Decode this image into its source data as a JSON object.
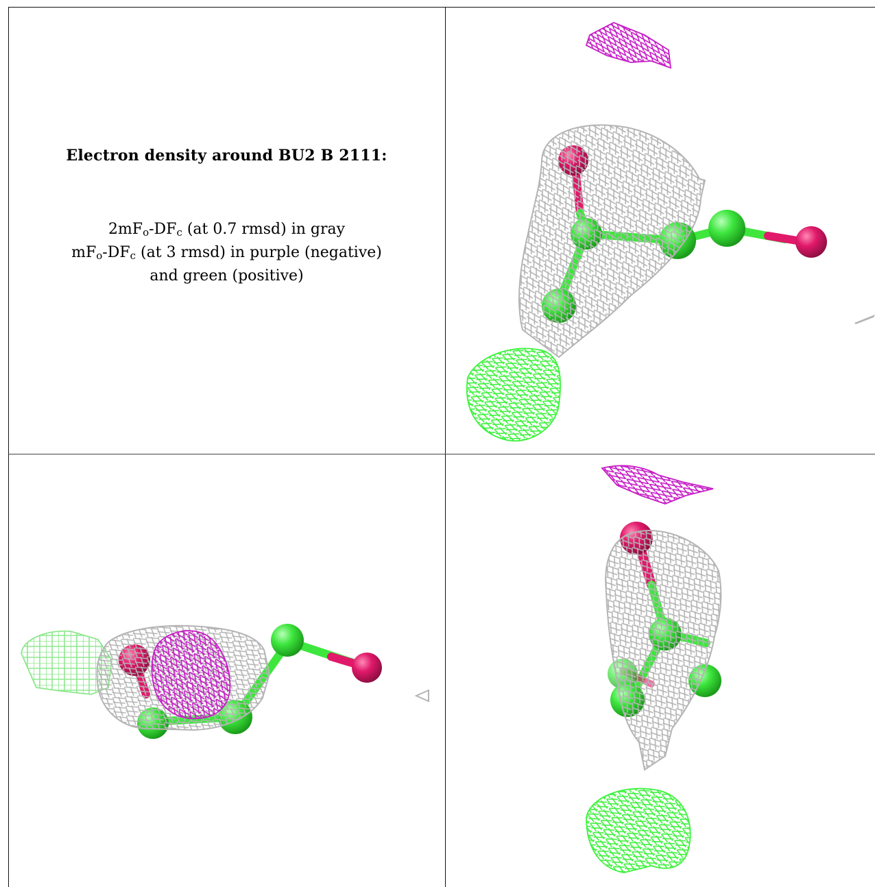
{
  "caption": {
    "title": "Electron density around BU2 B 2111:",
    "line1": {
      "a": "2mF",
      "a_sub": "o",
      "b": "-DF",
      "b_sub": "c",
      "rest": " (at 0.7 rmsd) in gray"
    },
    "line2": {
      "a": "mF",
      "a_sub": "o",
      "b": "-DF",
      "b_sub": "c",
      "rest": " (at 3 rmsd) in purple (negative)"
    },
    "line3": "and green (positive)"
  },
  "colors": {
    "mesh_gray": "#b4b4b4",
    "mesh_purple": "#c61dc6",
    "mesh_green": "#3df23d",
    "mesh_green_pale": "#8ee88e",
    "carbon": "#3ee63e",
    "oxygen": "#e0196a"
  }
}
